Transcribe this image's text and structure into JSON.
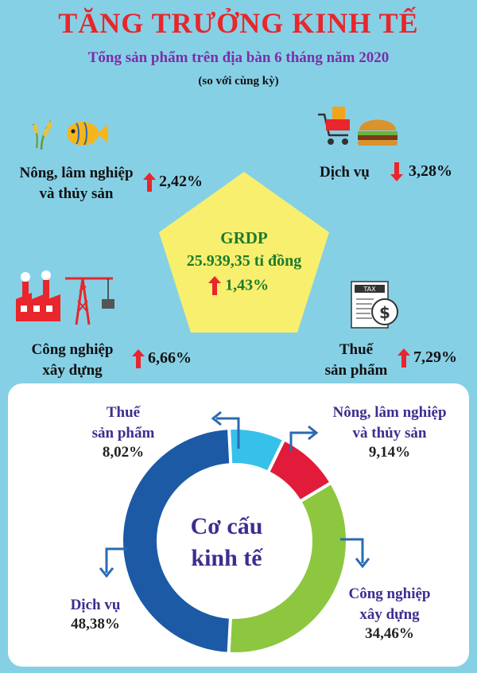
{
  "title": "TĂNG TRƯỞNG KINH TẾ",
  "subtitle": "Tổng sản phẩm trên địa bàn 6 tháng năm 2020",
  "comparison_note": "(so với cùng kỳ)",
  "growth": {
    "agriculture": {
      "label_line1": "Nông, lâm nghiệp",
      "label_line2": "và thủy sản",
      "value": "2,42%",
      "direction": "up"
    },
    "services": {
      "label": "Dịch vụ",
      "value": "3,28%",
      "direction": "down"
    },
    "industry": {
      "label_line1": "Công nghiệp",
      "label_line2": "xây dựng",
      "value": "6,66%",
      "direction": "up"
    },
    "tax": {
      "label_line1": "Thuế",
      "label_line2": "sản phẩm",
      "value": "7,29%",
      "direction": "up"
    }
  },
  "grdp": {
    "title": "GRDP",
    "value": "25.939,35 tỉ đồng",
    "growth": "1,43%",
    "direction": "up"
  },
  "structure": {
    "center_line1": "Cơ cấu",
    "center_line2": "kinh tế",
    "segments": {
      "tax": {
        "label_line1": "Thuế",
        "label_line2": "sản phẩm",
        "value": "8,02%"
      },
      "agriculture": {
        "label_line1": "Nông, lâm nghiệp",
        "label_line2": "và thủy sản",
        "value": "9,14%"
      },
      "industry": {
        "label_line1": "Công nghiệp",
        "label_line2": "xây dựng",
        "value": "34,46%"
      },
      "services": {
        "label_line1": "Dịch vụ",
        "value": "48,38%"
      }
    }
  },
  "colors": {
    "background": "#86d0e6",
    "title": "#e8262b",
    "subtitle": "#7b2ea8",
    "grdp_pentagon": "#f8ef6e",
    "grdp_text": "#1f7a2c",
    "arrow_up": "#e8262b",
    "arrow_down": "#e8262b",
    "tax": "#36c1ea",
    "agriculture": "#e21b3a",
    "industry": "#8dc63f",
    "services": "#1c5aa6"
  },
  "chart_data": {
    "type": "pie",
    "donut": true,
    "title": "Cơ cấu kinh tế",
    "categories": [
      "Thuế sản phẩm",
      "Nông, lâm nghiệp và thủy sản",
      "Công nghiệp xây dựng",
      "Dịch vụ"
    ],
    "values": [
      8.02,
      9.14,
      34.46,
      48.38
    ],
    "colors": [
      "#36c1ea",
      "#e21b3a",
      "#8dc63f",
      "#1c5aa6"
    ],
    "unit": "%"
  }
}
